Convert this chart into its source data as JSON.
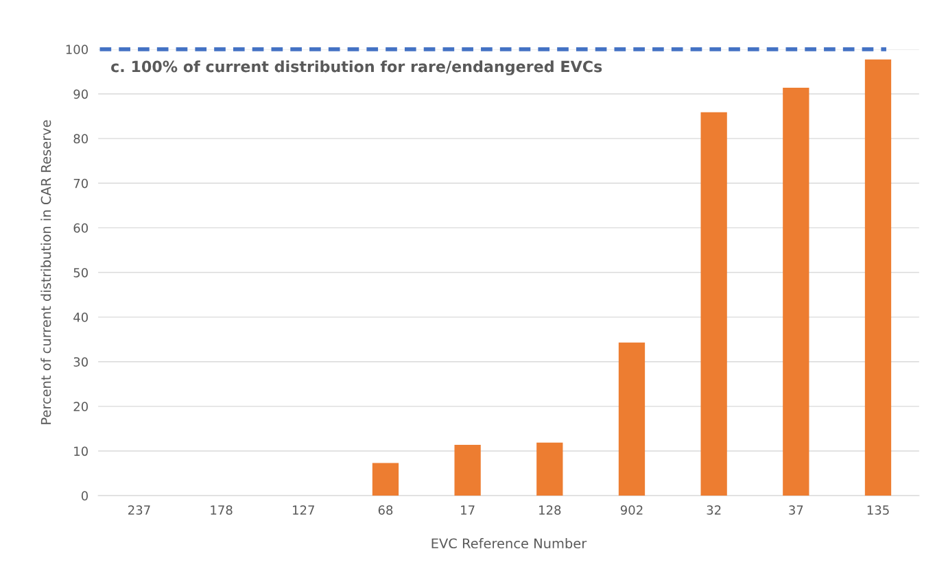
{
  "chart_data": {
    "type": "bar",
    "categories": [
      "237",
      "178",
      "127",
      "68",
      "17",
      "128",
      "902",
      "32",
      "37",
      "135"
    ],
    "values": [
      0,
      0,
      0,
      7.3,
      11.4,
      11.9,
      34.3,
      85.9,
      91.4,
      97.7
    ],
    "color": "#ed7d31",
    "xlabel": "EVC Reference Number",
    "ylabel": "Percent of current distribution in CAR Reserve",
    "ylim": [
      0,
      100
    ],
    "yticks": [
      0,
      10,
      20,
      30,
      40,
      50,
      60,
      70,
      80,
      90,
      100
    ],
    "grid": "y",
    "ref_lines": [
      {
        "axis": "y",
        "value": 100,
        "label": "c. 100% of current distribution for rare/endangered EVCs",
        "color": "#4472c4",
        "line_style": "dashed"
      }
    ]
  }
}
